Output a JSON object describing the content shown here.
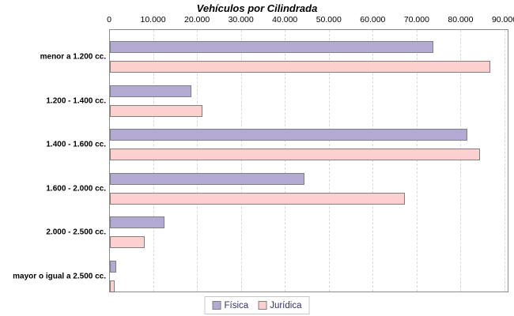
{
  "chart_data": {
    "type": "bar",
    "orientation": "horizontal",
    "title": "Vehículos por Cilindrada",
    "categories": [
      "menor a 1.200 cc.",
      "1.200 - 1.400 cc.",
      "1.400 - 1.600 cc.",
      "1.600 - 2.000 cc.",
      "2.000 - 2.500 cc.",
      "mayor o igual a 2.500 cc."
    ],
    "series": [
      {
        "name": "Física",
        "color": "#b2aad2",
        "values": [
          73700,
          18500,
          81300,
          44300,
          12500,
          1500
        ]
      },
      {
        "name": "Jurídica",
        "color": "#fdd0d0",
        "values": [
          86600,
          21000,
          84200,
          67100,
          8000,
          1100
        ]
      }
    ],
    "xlim": [
      0,
      90000
    ],
    "x_ticks": [
      0,
      10000,
      20000,
      30000,
      40000,
      50000,
      60000,
      70000,
      80000,
      90000
    ],
    "x_tick_labels": [
      "0",
      "10.000",
      "20.000",
      "30.000",
      "40.000",
      "50.000",
      "60.000",
      "70.000",
      "80.000",
      "90.000"
    ],
    "grid": "vertical-dashed",
    "legend_position": "bottom"
  },
  "colors": {
    "background": "#ffffff",
    "title": "#000000",
    "axis": "#8a8a8a",
    "grid": "#d9d9d9",
    "bar_border": "#7f7f7f",
    "legend_border": "#c6c6c6",
    "legend_text": "#333366"
  }
}
